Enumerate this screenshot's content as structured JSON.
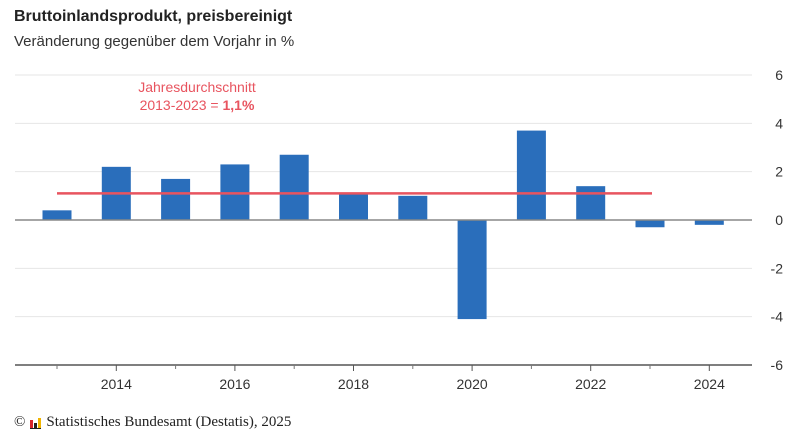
{
  "chart_data": {
    "type": "bar",
    "title": "Bruttoinlandsprodukt, preisbereinigt",
    "subtitle": "Veränderung gegenüber dem Vorjahr in %",
    "categories": [
      2013,
      2014,
      2015,
      2016,
      2017,
      2018,
      2019,
      2020,
      2021,
      2022,
      2023,
      2024
    ],
    "values": [
      0.4,
      2.2,
      1.7,
      2.3,
      2.7,
      1.1,
      1.0,
      -4.1,
      3.7,
      1.4,
      -0.3,
      -0.2
    ],
    "xlabel": "",
    "ylabel": "",
    "ylim": [
      -6,
      6
    ],
    "xlim": [
      2012.3,
      2024.7
    ],
    "yticks": [
      6,
      4,
      2,
      0,
      -2,
      -4,
      -6
    ],
    "ytick_labels": [
      "6",
      "4",
      "2",
      "0",
      "-2",
      "-4",
      "-6"
    ],
    "xticks_labeled": [
      2014,
      2016,
      2018,
      2020,
      2022,
      2024
    ],
    "xticks_minor": [
      2013,
      2015,
      2017,
      2019,
      2021,
      2023
    ],
    "y_axis_position": "right",
    "grid": true,
    "bar_color": "#2a6ebb",
    "reference_line": {
      "label_line1": "Jahresdurchschnitt",
      "label_line2_prefix": "2013-2023 = ",
      "label_line2_value": "1,1%",
      "value": 1.1,
      "x_start": 2013,
      "x_end": 2023,
      "color": "#e8545f"
    }
  },
  "footer": {
    "copyright": "©",
    "source": "Statistisches Bundesamt (Destatis), 2025"
  }
}
